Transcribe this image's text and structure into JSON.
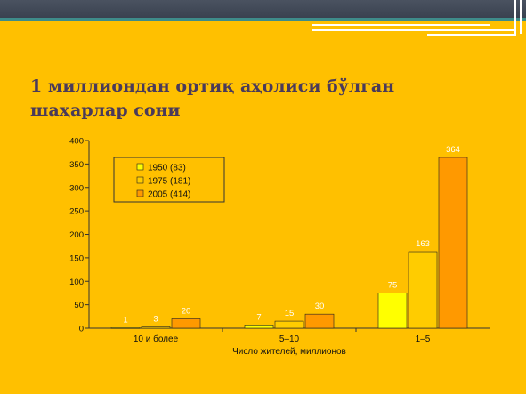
{
  "slide": {
    "title": "1 миллиондан ортиқ аҳолиси бўлган шаҳарлар сони"
  },
  "colors": {
    "background": "#ffc000",
    "series": [
      "#ffff00",
      "#ffcc00",
      "#ff9900"
    ]
  },
  "chart_data": {
    "type": "bar",
    "categories": [
      "10 и более",
      "5–10",
      "1–5"
    ],
    "series": [
      {
        "name": "1950 (83)",
        "values": [
          1,
          7,
          75
        ]
      },
      {
        "name": "1975 (181)",
        "values": [
          3,
          15,
          163
        ]
      },
      {
        "name": "2005 (414)",
        "values": [
          20,
          30,
          364
        ]
      }
    ],
    "xlabel": "Число жителей, миллионов",
    "ylabel": "",
    "ylim": [
      0,
      400
    ],
    "yticks": [
      0,
      50,
      100,
      150,
      200,
      250,
      300,
      350,
      400
    ],
    "legend_position": "top-left",
    "grid": false,
    "data_labels": true
  }
}
